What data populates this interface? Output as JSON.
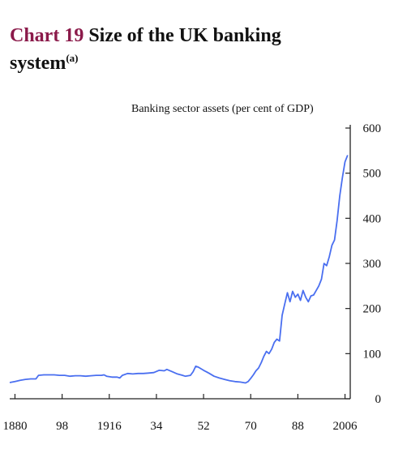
{
  "header": {
    "chart_number": "Chart 19",
    "title_main": "Size of the UK banking",
    "title_cont": "system",
    "title_sup": "(a)"
  },
  "chart_data": {
    "type": "line",
    "title": "Chart 19 Size of the UK banking system(a)",
    "ylabel": "Banking sector assets (per cent of GDP)",
    "xlabel": "",
    "ylim": [
      0,
      600
    ],
    "y_ticks": [
      0,
      100,
      200,
      300,
      400,
      500,
      600
    ],
    "y_axis_side": "right",
    "x_ticks": [
      1880,
      1898,
      1916,
      1934,
      1952,
      1970,
      1988,
      2006
    ],
    "x_tick_labels": [
      "1880",
      "98",
      "1916",
      "34",
      "52",
      "70",
      "88",
      "2006"
    ],
    "xlim": [
      1878,
      2008
    ],
    "grid": false,
    "series": [
      {
        "color": "#4a6ff0",
        "points": [
          [
            1878,
            36
          ],
          [
            1880,
            38
          ],
          [
            1882,
            41
          ],
          [
            1884,
            43
          ],
          [
            1886,
            44
          ],
          [
            1888,
            44
          ],
          [
            1889,
            52
          ],
          [
            1891,
            53
          ],
          [
            1893,
            53
          ],
          [
            1895,
            53
          ],
          [
            1897,
            52
          ],
          [
            1899,
            52
          ],
          [
            1901,
            50
          ],
          [
            1903,
            51
          ],
          [
            1905,
            51
          ],
          [
            1907,
            50
          ],
          [
            1909,
            51
          ],
          [
            1911,
            52
          ],
          [
            1913,
            52
          ],
          [
            1914,
            53
          ],
          [
            1915,
            50
          ],
          [
            1917,
            48
          ],
          [
            1919,
            48
          ],
          [
            1920,
            46
          ],
          [
            1921,
            52
          ],
          [
            1923,
            56
          ],
          [
            1925,
            55
          ],
          [
            1927,
            56
          ],
          [
            1929,
            56
          ],
          [
            1931,
            57
          ],
          [
            1933,
            58
          ],
          [
            1935,
            63
          ],
          [
            1937,
            62
          ],
          [
            1938,
            65
          ],
          [
            1940,
            60
          ],
          [
            1942,
            55
          ],
          [
            1944,
            52
          ],
          [
            1945,
            50
          ],
          [
            1947,
            52
          ],
          [
            1948,
            60
          ],
          [
            1949,
            72
          ],
          [
            1950,
            70
          ],
          [
            1952,
            63
          ],
          [
            1954,
            57
          ],
          [
            1956,
            50
          ],
          [
            1958,
            46
          ],
          [
            1960,
            43
          ],
          [
            1962,
            40
          ],
          [
            1964,
            38
          ],
          [
            1966,
            37
          ],
          [
            1968,
            35
          ],
          [
            1969,
            38
          ],
          [
            1970,
            45
          ],
          [
            1971,
            53
          ],
          [
            1972,
            62
          ],
          [
            1973,
            68
          ],
          [
            1974,
            80
          ],
          [
            1975,
            94
          ],
          [
            1976,
            105
          ],
          [
            1977,
            100
          ],
          [
            1978,
            110
          ],
          [
            1979,
            125
          ],
          [
            1980,
            132
          ],
          [
            1981,
            128
          ],
          [
            1982,
            185
          ],
          [
            1983,
            210
          ],
          [
            1984,
            235
          ],
          [
            1985,
            215
          ],
          [
            1986,
            238
          ],
          [
            1987,
            225
          ],
          [
            1988,
            232
          ],
          [
            1989,
            218
          ],
          [
            1990,
            240
          ],
          [
            1991,
            225
          ],
          [
            1992,
            215
          ],
          [
            1993,
            228
          ],
          [
            1994,
            230
          ],
          [
            1995,
            240
          ],
          [
            1996,
            250
          ],
          [
            1997,
            265
          ],
          [
            1998,
            300
          ],
          [
            1999,
            295
          ],
          [
            2000,
            315
          ],
          [
            2001,
            340
          ],
          [
            2002,
            352
          ],
          [
            2003,
            395
          ],
          [
            2004,
            450
          ],
          [
            2005,
            490
          ],
          [
            2006,
            525
          ],
          [
            2007,
            540
          ]
        ]
      }
    ]
  }
}
